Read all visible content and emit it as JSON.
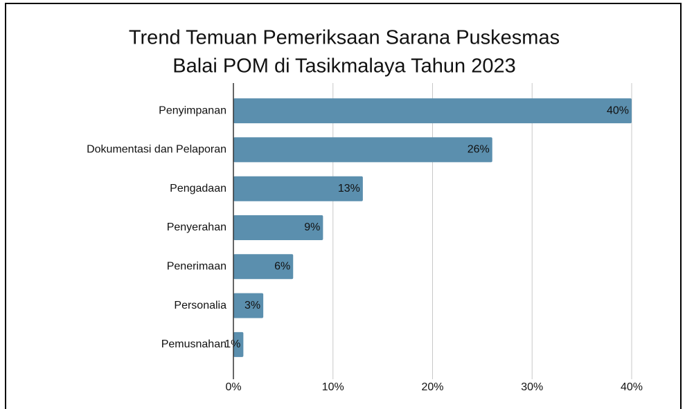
{
  "chart_data": {
    "type": "bar",
    "orientation": "horizontal",
    "title": [
      "Trend Temuan Pemeriksaan Sarana Puskesmas",
      "Balai POM di Tasikmalaya Tahun 2023"
    ],
    "categories": [
      "Penyimpanan",
      "Dokumentasi dan Pelaporan",
      "Pengadaan",
      "Penyerahan",
      "Penerimaan",
      "Personalia",
      "Pemusnahan"
    ],
    "values": [
      40,
      26,
      13,
      9,
      6,
      3,
      1
    ],
    "value_labels": [
      "40%",
      "26%",
      "13%",
      "9%",
      "6%",
      "3%",
      "1%"
    ],
    "color": "#5b8fae",
    "xlim": [
      0,
      40
    ],
    "xticks": [
      {
        "value": 0,
        "label": "0%"
      },
      {
        "value": 10,
        "label": "10%"
      },
      {
        "value": 20,
        "label": "20%"
      },
      {
        "value": 30,
        "label": "30%"
      },
      {
        "value": 40,
        "label": "40%"
      }
    ],
    "grid": true
  }
}
